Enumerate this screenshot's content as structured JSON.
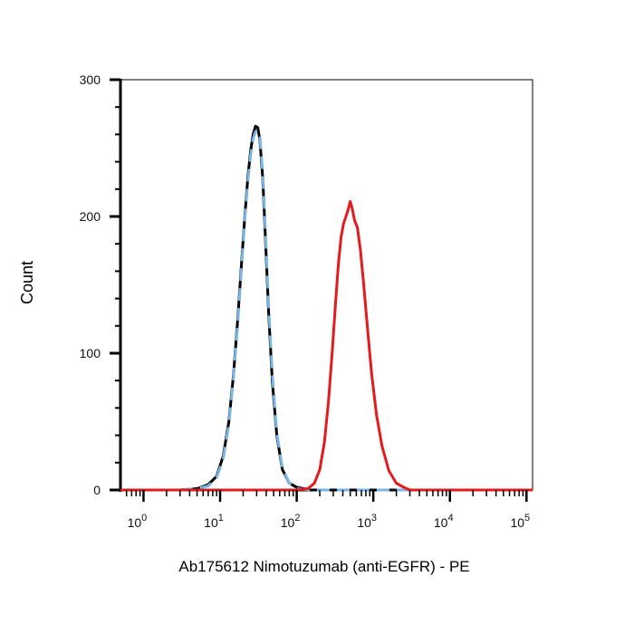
{
  "chart_data": {
    "type": "line",
    "title": "",
    "xlabel": "Ab175612 Nimotuzumab (anti-EGFR) - PE",
    "ylabel": "Count",
    "x_scale": "log",
    "xlim": [
      0.5,
      120000
    ],
    "ylim": [
      0,
      300
    ],
    "y_ticks": [
      0,
      100,
      200,
      300
    ],
    "x_ticks": [
      {
        "base": "10",
        "exp": "0"
      },
      {
        "base": "10",
        "exp": "1"
      },
      {
        "base": "10",
        "exp": "2"
      },
      {
        "base": "10",
        "exp": "3"
      },
      {
        "base": "10",
        "exp": "4"
      },
      {
        "base": "10",
        "exp": "5"
      }
    ],
    "grid": false,
    "legend": "none",
    "series": [
      {
        "color": "#000000",
        "style": "solid",
        "points": [
          [
            3,
            0
          ],
          [
            5,
            1
          ],
          [
            7,
            4
          ],
          [
            9,
            10
          ],
          [
            11,
            25
          ],
          [
            13,
            50
          ],
          [
            15,
            85
          ],
          [
            17,
            125
          ],
          [
            19,
            165
          ],
          [
            21,
            200
          ],
          [
            23,
            228
          ],
          [
            25,
            248
          ],
          [
            27,
            260
          ],
          [
            29,
            266
          ],
          [
            31,
            265
          ],
          [
            33,
            256
          ],
          [
            36,
            228
          ],
          [
            39,
            185
          ],
          [
            43,
            130
          ],
          [
            48,
            80
          ],
          [
            55,
            40
          ],
          [
            65,
            15
          ],
          [
            80,
            5
          ],
          [
            100,
            2
          ],
          [
            150,
            0
          ],
          [
            10000,
            0
          ],
          [
            120000,
            0
          ]
        ]
      },
      {
        "color": "#79b6e3",
        "style": "dashed",
        "points": [
          [
            3,
            0
          ],
          [
            5,
            1
          ],
          [
            7,
            3
          ],
          [
            9,
            9
          ],
          [
            11,
            23
          ],
          [
            13,
            48
          ],
          [
            15,
            83
          ],
          [
            17,
            122
          ],
          [
            19,
            162
          ],
          [
            21,
            198
          ],
          [
            23,
            225
          ],
          [
            25,
            245
          ],
          [
            27,
            257
          ],
          [
            29,
            262
          ],
          [
            31,
            263
          ],
          [
            33,
            258
          ],
          [
            36,
            232
          ],
          [
            39,
            190
          ],
          [
            43,
            135
          ],
          [
            48,
            85
          ],
          [
            55,
            42
          ],
          [
            65,
            16
          ],
          [
            80,
            5
          ],
          [
            100,
            1
          ],
          [
            150,
            0
          ],
          [
            10000,
            0
          ],
          [
            120000,
            0
          ]
        ]
      },
      {
        "color": "#e41a1c",
        "style": "solid",
        "points": [
          [
            0.5,
            0
          ],
          [
            100,
            0
          ],
          [
            140,
            1
          ],
          [
            170,
            5
          ],
          [
            200,
            15
          ],
          [
            230,
            35
          ],
          [
            260,
            65
          ],
          [
            290,
            100
          ],
          [
            320,
            135
          ],
          [
            350,
            165
          ],
          [
            380,
            185
          ],
          [
            410,
            195
          ],
          [
            440,
            200
          ],
          [
            470,
            205
          ],
          [
            500,
            211
          ],
          [
            530,
            206
          ],
          [
            570,
            197
          ],
          [
            620,
            192
          ],
          [
            680,
            175
          ],
          [
            750,
            150
          ],
          [
            850,
            115
          ],
          [
            950,
            85
          ],
          [
            1100,
            55
          ],
          [
            1300,
            32
          ],
          [
            1600,
            14
          ],
          [
            2000,
            5
          ],
          [
            2500,
            2
          ],
          [
            3000,
            0
          ],
          [
            120000,
            0
          ]
        ]
      }
    ]
  }
}
